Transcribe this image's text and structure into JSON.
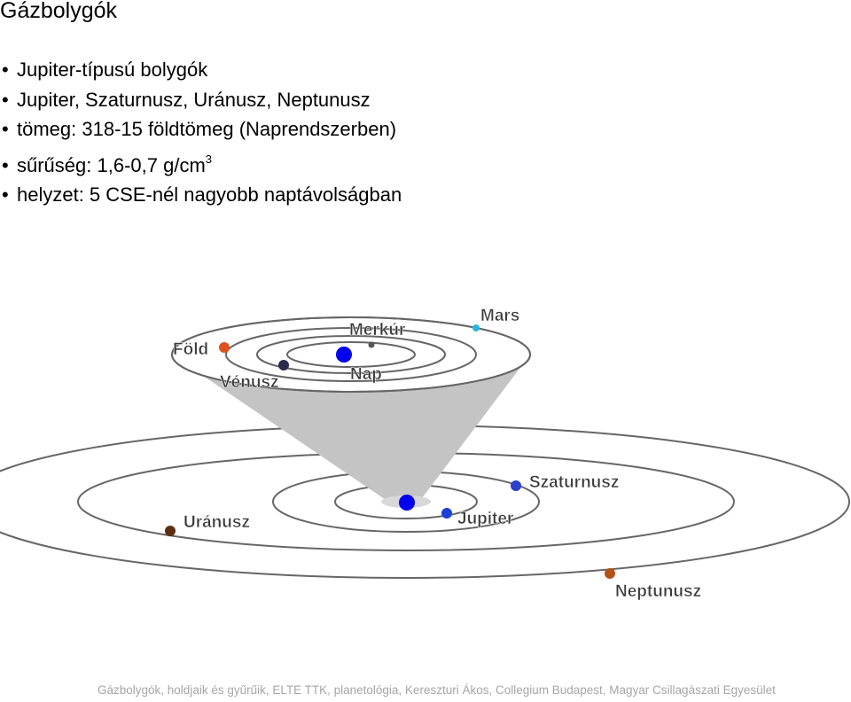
{
  "slide": {
    "title": "Gázbolygók",
    "bullets": [
      "Jupiter-típusú bolygók",
      "Jupiter, Szaturnusz, Uránusz, Neptunusz",
      "tömeg: 318-15 földtömeg (Naprendszerben)",
      "sűrűség: 1,6-0,7 g/cm",
      "helyzet: 5 CSE-nél nagyobb naptávolságban"
    ],
    "density_unit_sup": "3",
    "bullet_glyph": "•",
    "footer": "Gázbolygók, holdjaik és gyűrűik, ELTE TTK, planetológia, Kereszturi Ákos, Collegium Budapest, Magyar Csillagászati Egyesület"
  },
  "diagram": {
    "inner_labels": {
      "sun": "Nap",
      "mercury": "Merkúr",
      "venus": "Vénusz",
      "earth": "Föld",
      "mars": "Mars"
    },
    "outer_labels": {
      "jupiter": "Jupiter",
      "saturn": "Szaturnusz",
      "uranus": "Uránusz",
      "neptune": "Neptunusz"
    },
    "colors": {
      "sun": "#0000ee",
      "mercury": "#555555",
      "venus": "#2b2b4a",
      "earth": "#e0501e",
      "mars": "#2bb6e0",
      "jupiter": "#1c3fd6",
      "saturn": "#2f3fcc",
      "uranus": "#5a3010",
      "neptune": "#b2531a",
      "cone": "#c4c4c4",
      "orbit": "#666666"
    }
  }
}
